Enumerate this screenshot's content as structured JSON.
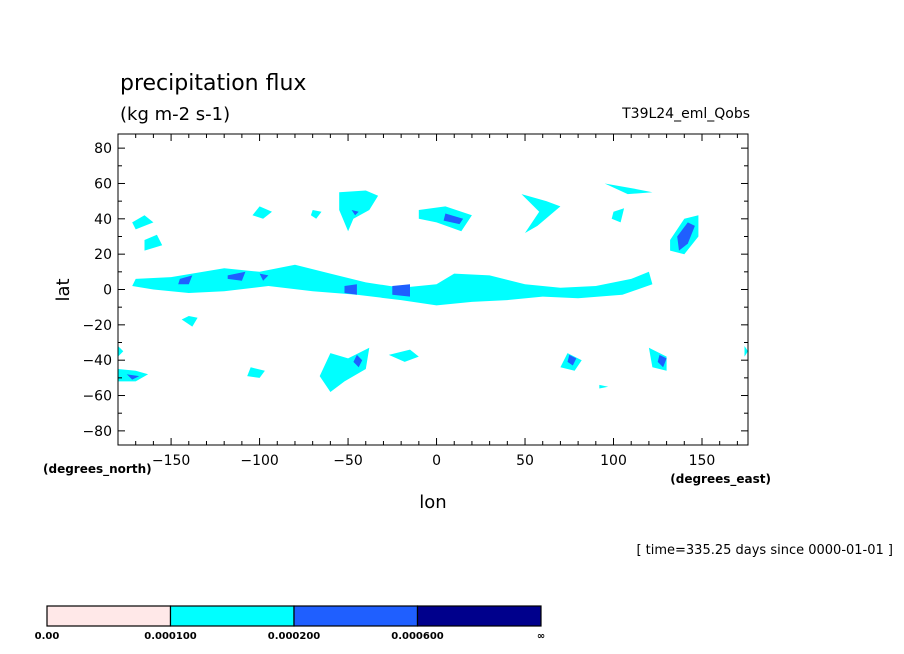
{
  "chart_data": {
    "type": "contour",
    "title": "precipitation flux",
    "subtitle": "(kg m-2 s-1)",
    "dataset_label": "T39L24_eml_Qobs",
    "xlabel": "lon",
    "ylabel": "lat",
    "x_units": "(degrees_east)",
    "y_units": "(degrees_north)",
    "time_label": "[ time=335.25 days since 0000-01-01 ]",
    "xlim": [
      -180,
      176
    ],
    "ylim": [
      -88,
      88
    ],
    "x_ticks": [
      -150,
      -100,
      -50,
      0,
      50,
      100,
      150
    ],
    "y_ticks": [
      80,
      60,
      40,
      20,
      0,
      -20,
      -40,
      -60,
      -80
    ],
    "grid": false,
    "colorbar": {
      "placement": "bottom-left",
      "levels": [
        {
          "label": "0.00",
          "color": "#ffe8e8"
        },
        {
          "label": "0.000100",
          "color": "#00ffff"
        },
        {
          "label": "0.000200",
          "color": "#1f5fff"
        },
        {
          "label": "0.000600",
          "color": "#00008c"
        }
      ],
      "end_label": "∞"
    },
    "contour_regions": [
      {
        "level": 1,
        "points": [
          [
            -170,
            6
          ],
          [
            -150,
            7
          ],
          [
            -120,
            12
          ],
          [
            -100,
            10
          ],
          [
            -80,
            14
          ],
          [
            -60,
            9
          ],
          [
            -40,
            4
          ],
          [
            -20,
            1
          ],
          [
            0,
            3
          ],
          [
            10,
            9
          ],
          [
            30,
            8
          ],
          [
            50,
            3
          ],
          [
            70,
            1
          ],
          [
            90,
            2
          ],
          [
            110,
            6
          ],
          [
            120,
            10
          ],
          [
            122,
            3
          ],
          [
            105,
            -3
          ],
          [
            80,
            -5
          ],
          [
            60,
            -4
          ],
          [
            40,
            -6
          ],
          [
            20,
            -7
          ],
          [
            0,
            -9
          ],
          [
            -20,
            -6
          ],
          [
            -45,
            -3
          ],
          [
            -70,
            -1
          ],
          [
            -95,
            2
          ],
          [
            -120,
            -1
          ],
          [
            -140,
            -2
          ],
          [
            -160,
            0
          ],
          [
            -172,
            2
          ]
        ]
      },
      {
        "level": 1,
        "points": [
          [
            -180,
            -45
          ],
          [
            -170,
            -46
          ],
          [
            -163,
            -48
          ],
          [
            -170,
            -52
          ],
          [
            -180,
            -52
          ]
        ]
      },
      {
        "level": 1,
        "points": [
          [
            -180,
            -32
          ],
          [
            -177,
            -35
          ],
          [
            -180,
            -38
          ]
        ]
      },
      {
        "level": 1,
        "points": [
          [
            -165,
            28
          ],
          [
            -158,
            31
          ],
          [
            -155,
            25
          ],
          [
            -165,
            22
          ]
        ]
      },
      {
        "level": 1,
        "points": [
          [
            -172,
            38
          ],
          [
            -165,
            42
          ],
          [
            -160,
            38
          ],
          [
            -170,
            34
          ]
        ]
      },
      {
        "level": 1,
        "points": [
          [
            -140,
            -15
          ],
          [
            -135,
            -16
          ],
          [
            -138,
            -21
          ],
          [
            -144,
            -17
          ]
        ]
      },
      {
        "level": 1,
        "points": [
          [
            -105,
            -44
          ],
          [
            -97,
            -46
          ],
          [
            -100,
            -50
          ],
          [
            -107,
            -49
          ]
        ]
      },
      {
        "level": 1,
        "points": [
          [
            -60,
            -36
          ],
          [
            -50,
            -39
          ],
          [
            -38,
            -33
          ],
          [
            -40,
            -45
          ],
          [
            -52,
            -52
          ],
          [
            -60,
            -58
          ],
          [
            -66,
            -49
          ]
        ]
      },
      {
        "level": 1,
        "points": [
          [
            -15,
            -34
          ],
          [
            -10,
            -38
          ],
          [
            -18,
            -41
          ],
          [
            -27,
            -37
          ]
        ]
      },
      {
        "level": 1,
        "points": [
          [
            -55,
            55
          ],
          [
            -40,
            56
          ],
          [
            -33,
            53
          ],
          [
            -38,
            45
          ],
          [
            -47,
            40
          ],
          [
            -50,
            33
          ],
          [
            -55,
            45
          ]
        ]
      },
      {
        "level": 1,
        "points": [
          [
            -10,
            45
          ],
          [
            5,
            47
          ],
          [
            20,
            42
          ],
          [
            14,
            33
          ],
          [
            0,
            38
          ],
          [
            -10,
            40
          ]
        ]
      },
      {
        "level": 1,
        "points": [
          [
            -100,
            47
          ],
          [
            -93,
            44
          ],
          [
            -98,
            40
          ],
          [
            -104,
            42
          ]
        ]
      },
      {
        "level": 1,
        "points": [
          [
            -70,
            45
          ],
          [
            -65,
            44
          ],
          [
            -68,
            40
          ],
          [
            -71,
            42
          ]
        ]
      },
      {
        "level": 1,
        "points": [
          [
            48,
            54
          ],
          [
            62,
            50
          ],
          [
            70,
            47
          ],
          [
            57,
            36
          ],
          [
            50,
            32
          ],
          [
            58,
            44
          ]
        ]
      },
      {
        "level": 1,
        "points": [
          [
            95,
            60
          ],
          [
            112,
            57
          ],
          [
            122,
            55
          ],
          [
            108,
            54
          ]
        ]
      },
      {
        "level": 1,
        "points": [
          [
            100,
            44
          ],
          [
            106,
            46
          ],
          [
            104,
            38
          ],
          [
            99,
            40
          ]
        ]
      },
      {
        "level": 1,
        "points": [
          [
            132,
            28
          ],
          [
            140,
            40
          ],
          [
            148,
            42
          ],
          [
            148,
            30
          ],
          [
            140,
            20
          ],
          [
            132,
            22
          ]
        ]
      },
      {
        "level": 1,
        "points": [
          [
            74,
            -36
          ],
          [
            82,
            -40
          ],
          [
            78,
            -46
          ],
          [
            70,
            -44
          ]
        ]
      },
      {
        "level": 1,
        "points": [
          [
            120,
            -33
          ],
          [
            130,
            -38
          ],
          [
            130,
            -46
          ],
          [
            122,
            -44
          ]
        ]
      },
      {
        "level": 1,
        "points": [
          [
            92,
            -54
          ],
          [
            97,
            -55
          ],
          [
            92,
            -56
          ]
        ]
      },
      {
        "level": 1,
        "points": [
          [
            174,
            -32
          ],
          [
            176,
            -35
          ],
          [
            174,
            -38
          ]
        ]
      },
      {
        "level": 2,
        "points": [
          [
            -145,
            6
          ],
          [
            -138,
            8
          ],
          [
            -140,
            3
          ],
          [
            -146,
            3
          ]
        ]
      },
      {
        "level": 2,
        "points": [
          [
            -118,
            8
          ],
          [
            -108,
            10
          ],
          [
            -110,
            5
          ],
          [
            -118,
            6
          ]
        ]
      },
      {
        "level": 2,
        "points": [
          [
            -100,
            9
          ],
          [
            -95,
            8
          ],
          [
            -98,
            5
          ]
        ]
      },
      {
        "level": 2,
        "points": [
          [
            -52,
            2
          ],
          [
            -45,
            3
          ],
          [
            -45,
            -3
          ],
          [
            -52,
            -2
          ]
        ]
      },
      {
        "level": 2,
        "points": [
          [
            -25,
            2
          ],
          [
            -15,
            3
          ],
          [
            -15,
            -4
          ],
          [
            -25,
            -3
          ]
        ]
      },
      {
        "level": 2,
        "points": [
          [
            -45,
            -37
          ],
          [
            -42,
            -40
          ],
          [
            -44,
            -44
          ],
          [
            -47,
            -41
          ]
        ]
      },
      {
        "level": 2,
        "points": [
          [
            75,
            -37
          ],
          [
            79,
            -39
          ],
          [
            77,
            -43
          ],
          [
            74,
            -41
          ]
        ]
      },
      {
        "level": 2,
        "points": [
          [
            126,
            -37
          ],
          [
            130,
            -39
          ],
          [
            128,
            -44
          ],
          [
            125,
            -41
          ]
        ]
      },
      {
        "level": 2,
        "points": [
          [
            136,
            30
          ],
          [
            142,
            38
          ],
          [
            146,
            36
          ],
          [
            142,
            26
          ],
          [
            137,
            22
          ]
        ]
      },
      {
        "level": 2,
        "points": [
          [
            5,
            43
          ],
          [
            15,
            40
          ],
          [
            13,
            37
          ],
          [
            4,
            39
          ]
        ]
      },
      {
        "level": 2,
        "points": [
          [
            -48,
            45
          ],
          [
            -44,
            44
          ],
          [
            -46,
            42
          ]
        ]
      },
      {
        "level": 2,
        "points": [
          [
            -175,
            -48
          ],
          [
            -168,
            -49
          ],
          [
            -172,
            -51
          ]
        ]
      }
    ]
  }
}
